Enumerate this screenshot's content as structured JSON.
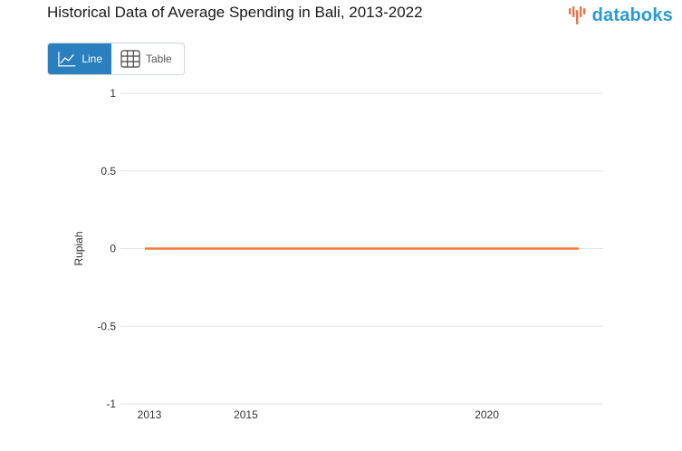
{
  "header": {
    "title": "Historical Data of Average Spending in Bali, 2013-2022",
    "brand": "databoks",
    "brand_icon": "databoks-logo-icon",
    "brand_color": "#2a9bd0",
    "brand_mark_color": "#e8734a"
  },
  "view_toggle": {
    "line_label": "Line",
    "line_icon": "line-chart-icon",
    "table_label": "Table",
    "table_icon": "table-icon",
    "active": "Line",
    "active_color": "#2a7fbf"
  },
  "chart_data": {
    "type": "line",
    "title": "Historical Data of Average Spending in Bali, 2013-2022",
    "xlabel": "",
    "ylabel": "Rupiah",
    "x_ticks": [
      "2013",
      "2015",
      "2020"
    ],
    "y_ticks": [
      "1",
      "0.5",
      "0",
      "-0.5",
      "-1"
    ],
    "ylim": [
      -1,
      1
    ],
    "xlim": [
      2013,
      2022
    ],
    "grid": true,
    "legend": "none",
    "series": [
      {
        "color": "#f07c3a",
        "x": [
          2013,
          2014,
          2015,
          2016,
          2017,
          2018,
          2019,
          2020,
          2021,
          2022
        ],
        "values": [
          0,
          0,
          0,
          0,
          0,
          0,
          0,
          0,
          0,
          0
        ]
      }
    ]
  }
}
